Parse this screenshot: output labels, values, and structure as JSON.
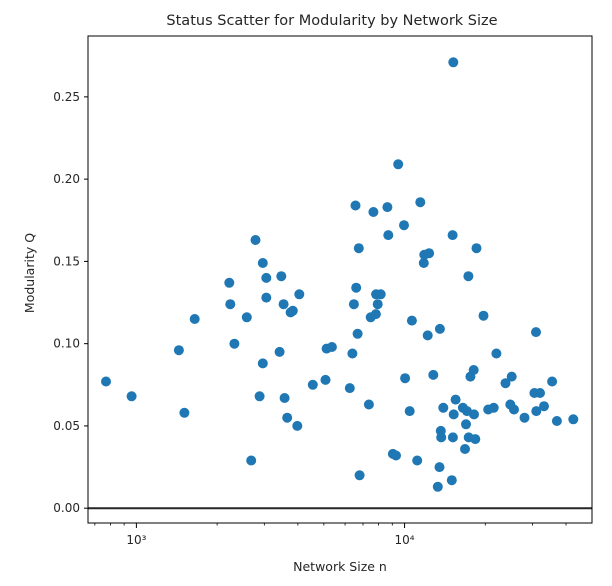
{
  "chart_data": {
    "type": "scatter",
    "title": "Status Scatter for Modularity by Network Size",
    "xlabel": "Network Size n",
    "ylabel": "Modularity Q",
    "xscale": "log",
    "xlim": [
      660,
      50000
    ],
    "ylim": [
      -0.009,
      0.287
    ],
    "x_ticks": [
      {
        "value": 1000,
        "label": "10³"
      },
      {
        "value": 10000,
        "label": "10⁴"
      }
    ],
    "y_ticks": [
      {
        "value": 0.0,
        "label": "0.00"
      },
      {
        "value": 0.05,
        "label": "0.05"
      },
      {
        "value": 0.1,
        "label": "0.10"
      },
      {
        "value": 0.15,
        "label": "0.15"
      },
      {
        "value": 0.2,
        "label": "0.20"
      },
      {
        "value": 0.25,
        "label": "0.25"
      }
    ],
    "grid": false,
    "hline": 0.0,
    "marker_color": "#1f77b4",
    "points": [
      [
        770,
        0.077
      ],
      [
        960,
        0.068
      ],
      [
        1440,
        0.096
      ],
      [
        1510,
        0.058
      ],
      [
        1650,
        0.115
      ],
      [
        2220,
        0.137
      ],
      [
        2240,
        0.124
      ],
      [
        2320,
        0.1
      ],
      [
        2580,
        0.116
      ],
      [
        2680,
        0.029
      ],
      [
        2780,
        0.163
      ],
      [
        2880,
        0.068
      ],
      [
        2960,
        0.149
      ],
      [
        2960,
        0.088
      ],
      [
        3050,
        0.14
      ],
      [
        3050,
        0.128
      ],
      [
        3420,
        0.095
      ],
      [
        3470,
        0.141
      ],
      [
        3540,
        0.124
      ],
      [
        3570,
        0.067
      ],
      [
        3650,
        0.055
      ],
      [
        3760,
        0.119
      ],
      [
        3830,
        0.12
      ],
      [
        3980,
        0.05
      ],
      [
        4050,
        0.13
      ],
      [
        4550,
        0.075
      ],
      [
        5070,
        0.078
      ],
      [
        5120,
        0.097
      ],
      [
        5360,
        0.098
      ],
      [
        6250,
        0.073
      ],
      [
        6390,
        0.094
      ],
      [
        6470,
        0.124
      ],
      [
        6560,
        0.184
      ],
      [
        6600,
        0.134
      ],
      [
        6680,
        0.106
      ],
      [
        6750,
        0.158
      ],
      [
        6800,
        0.02
      ],
      [
        7360,
        0.063
      ],
      [
        7480,
        0.116
      ],
      [
        7650,
        0.18
      ],
      [
        7820,
        0.118
      ],
      [
        7830,
        0.13
      ],
      [
        7940,
        0.124
      ],
      [
        8150,
        0.13
      ],
      [
        8630,
        0.183
      ],
      [
        8700,
        0.166
      ],
      [
        9050,
        0.033
      ],
      [
        9290,
        0.032
      ],
      [
        9470,
        0.209
      ],
      [
        9950,
        0.172
      ],
      [
        10050,
        0.079
      ],
      [
        10450,
        0.059
      ],
      [
        10650,
        0.114
      ],
      [
        11150,
        0.029
      ],
      [
        11450,
        0.186
      ],
      [
        11800,
        0.149
      ],
      [
        11850,
        0.154
      ],
      [
        12200,
        0.105
      ],
      [
        12350,
        0.155
      ],
      [
        12800,
        0.081
      ],
      [
        13300,
        0.013
      ],
      [
        13500,
        0.025
      ],
      [
        13550,
        0.109
      ],
      [
        13650,
        0.047
      ],
      [
        13700,
        0.043
      ],
      [
        13950,
        0.061
      ],
      [
        15000,
        0.017
      ],
      [
        15100,
        0.166
      ],
      [
        15150,
        0.043
      ],
      [
        15200,
        0.271
      ],
      [
        15250,
        0.057
      ],
      [
        15500,
        0.066
      ],
      [
        16500,
        0.061
      ],
      [
        16800,
        0.036
      ],
      [
        16950,
        0.051
      ],
      [
        17100,
        0.059
      ],
      [
        17300,
        0.141
      ],
      [
        17350,
        0.043
      ],
      [
        17600,
        0.08
      ],
      [
        18100,
        0.084
      ],
      [
        18150,
        0.057
      ],
      [
        18350,
        0.042
      ],
      [
        18550,
        0.158
      ],
      [
        19700,
        0.117
      ],
      [
        20500,
        0.06
      ],
      [
        21500,
        0.061
      ],
      [
        22000,
        0.094
      ],
      [
        23800,
        0.076
      ],
      [
        24800,
        0.063
      ],
      [
        25100,
        0.08
      ],
      [
        25600,
        0.06
      ],
      [
        28000,
        0.055
      ],
      [
        30500,
        0.07
      ],
      [
        30900,
        0.107
      ],
      [
        31000,
        0.059
      ],
      [
        32000,
        0.07
      ],
      [
        33100,
        0.062
      ],
      [
        35500,
        0.077
      ],
      [
        37000,
        0.053
      ],
      [
        42600,
        0.054
      ]
    ]
  }
}
